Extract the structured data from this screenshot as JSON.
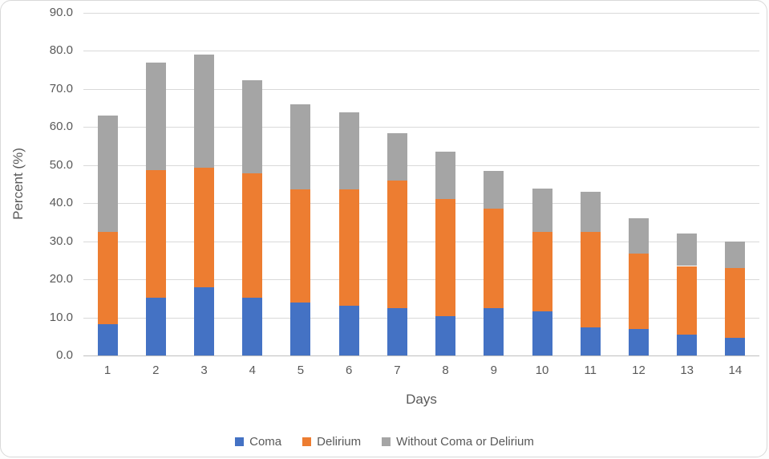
{
  "chart_data": {
    "type": "bar",
    "stacked": true,
    "title": "",
    "xlabel": "Days",
    "ylabel": "Percent (%)",
    "ylim": [
      0,
      90
    ],
    "ytick_step": 10,
    "grid": true,
    "legend_position": "bottom",
    "categories": [
      "1",
      "2",
      "3",
      "4",
      "5",
      "6",
      "7",
      "8",
      "9",
      "10",
      "11",
      "12",
      "13",
      "14"
    ],
    "series": [
      {
        "name": "Coma",
        "color": "#4472C4",
        "values": [
          8.3,
          15.1,
          17.9,
          15.1,
          13.9,
          13.1,
          12.4,
          10.3,
          12.4,
          11.6,
          7.4,
          6.9,
          5.4,
          4.7
        ]
      },
      {
        "name": "Delirium",
        "color": "#ED7D31",
        "values": [
          24.2,
          33.5,
          31.5,
          32.7,
          29.8,
          30.5,
          33.5,
          30.7,
          26.2,
          20.9,
          25.0,
          19.9,
          18.1,
          18.3
        ]
      },
      {
        "name": "Without Coma or Delirium",
        "color": "#A5A5A5",
        "values": [
          30.6,
          28.4,
          29.7,
          24.5,
          22.3,
          20.3,
          12.5,
          12.5,
          9.9,
          11.3,
          10.6,
          9.3,
          8.5,
          6.9
        ]
      }
    ],
    "totals": [
      63.1,
      77.0,
      79.1,
      72.3,
      66.0,
      63.9,
      58.4,
      53.5,
      48.5,
      43.8,
      43.0,
      36.1,
      32.0,
      29.9
    ]
  },
  "colors": {
    "axis_text": "#595959",
    "gridline": "#D9D9D9",
    "baseline": "#BFBFBF",
    "card_border": "#D9D9D9",
    "background": "#FFFFFF"
  }
}
